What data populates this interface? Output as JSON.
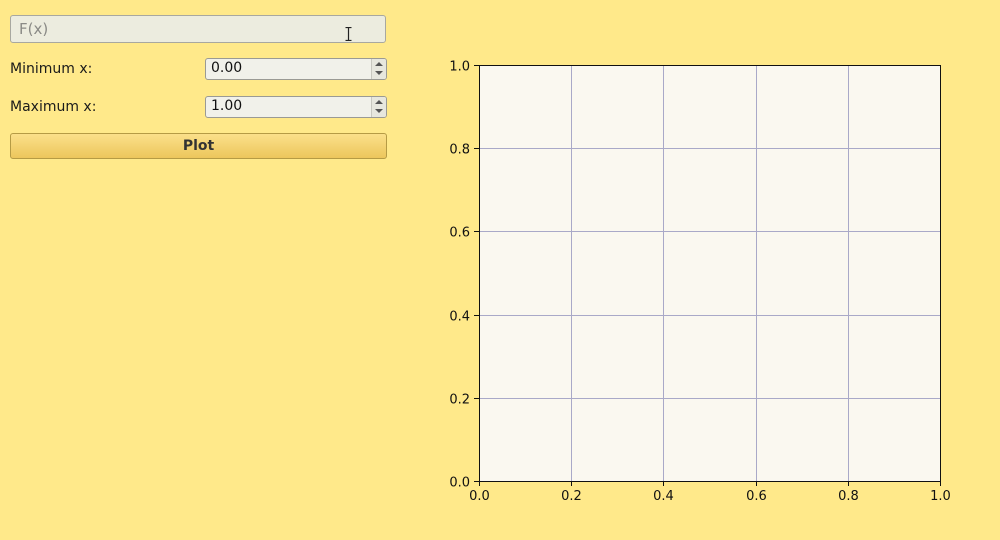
{
  "function_input": {
    "placeholder": "F(x)",
    "value": ""
  },
  "min_x": {
    "label": "Minimum x:",
    "value": "0.00"
  },
  "max_x": {
    "label": "Maximum x:",
    "value": "1.00"
  },
  "plot_button": {
    "label": "Plot"
  },
  "chart_data": {
    "type": "line",
    "title": "",
    "xlabel": "",
    "ylabel": "",
    "xlim": [
      0,
      1
    ],
    "ylim": [
      0,
      1
    ],
    "xticks": [
      "0.0",
      "0.2",
      "0.4",
      "0.6",
      "0.8",
      "1.0"
    ],
    "yticks": [
      "0.0",
      "0.2",
      "0.4",
      "0.6",
      "0.8",
      "1.0"
    ],
    "grid": true,
    "series": []
  },
  "colors": {
    "background": "#ffe98a",
    "plot_area": "#faf8f0",
    "grid": "#a9a9c8"
  }
}
